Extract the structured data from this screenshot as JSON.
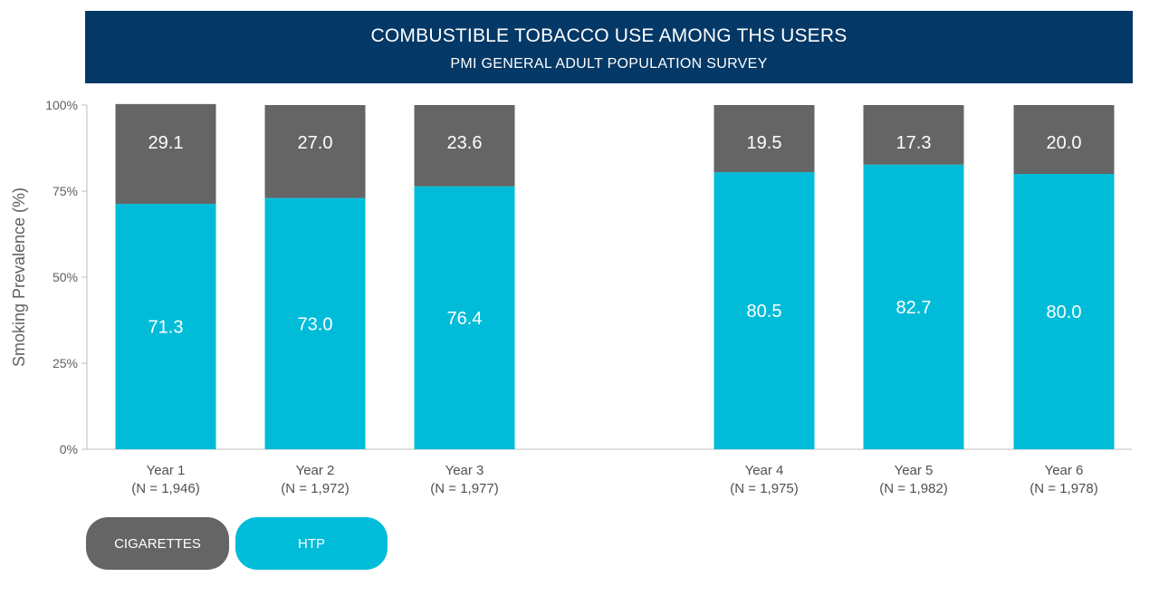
{
  "header": {
    "title": "COMBUSTIBLE TOBACCO USE AMONG THS USERS",
    "subtitle": "PMI GENERAL ADULT POPULATION SURVEY"
  },
  "chart_data": {
    "type": "bar",
    "stacked": true,
    "ylabel": "Smoking Prevalence (%)",
    "xlabel": "",
    "ylim": [
      0,
      100
    ],
    "yticks": [
      0,
      25,
      50,
      75,
      100
    ],
    "ytick_labels": [
      "0%",
      "25%",
      "50%",
      "75%",
      "100%"
    ],
    "categories": [
      {
        "name": "Year 1",
        "n": "(N = 1,946)"
      },
      {
        "name": "Year 2",
        "n": "(N = 1,972)"
      },
      {
        "name": "Year 3",
        "n": "(N = 1,977)"
      },
      {
        "name": "Year 4",
        "n": "(N = 1,975)"
      },
      {
        "name": "Year 5",
        "n": "(N = 1,982)"
      },
      {
        "name": "Year 6",
        "n": "(N = 1,978)"
      }
    ],
    "series": [
      {
        "name": "HTP",
        "color": "#01bcd9",
        "values": [
          71.3,
          73.0,
          76.4,
          80.5,
          82.7,
          80.0
        ],
        "labels": [
          "71.3",
          "73.0",
          "76.4",
          "80.5",
          "82.7",
          "80.0"
        ]
      },
      {
        "name": "CIGARETTES",
        "color": "#656565",
        "values": [
          29.1,
          27.0,
          23.6,
          19.5,
          17.3,
          20.0
        ],
        "labels": [
          "29.1",
          "27.0",
          "23.6",
          "19.5",
          "17.3",
          "20.0"
        ]
      }
    ],
    "legend": {
      "position": "bottom-left",
      "items": [
        {
          "label": "CIGARETTES",
          "color": "#656565"
        },
        {
          "label": "HTP",
          "color": "#01bcd9"
        }
      ]
    },
    "axis_color": "#bfbfbf"
  }
}
